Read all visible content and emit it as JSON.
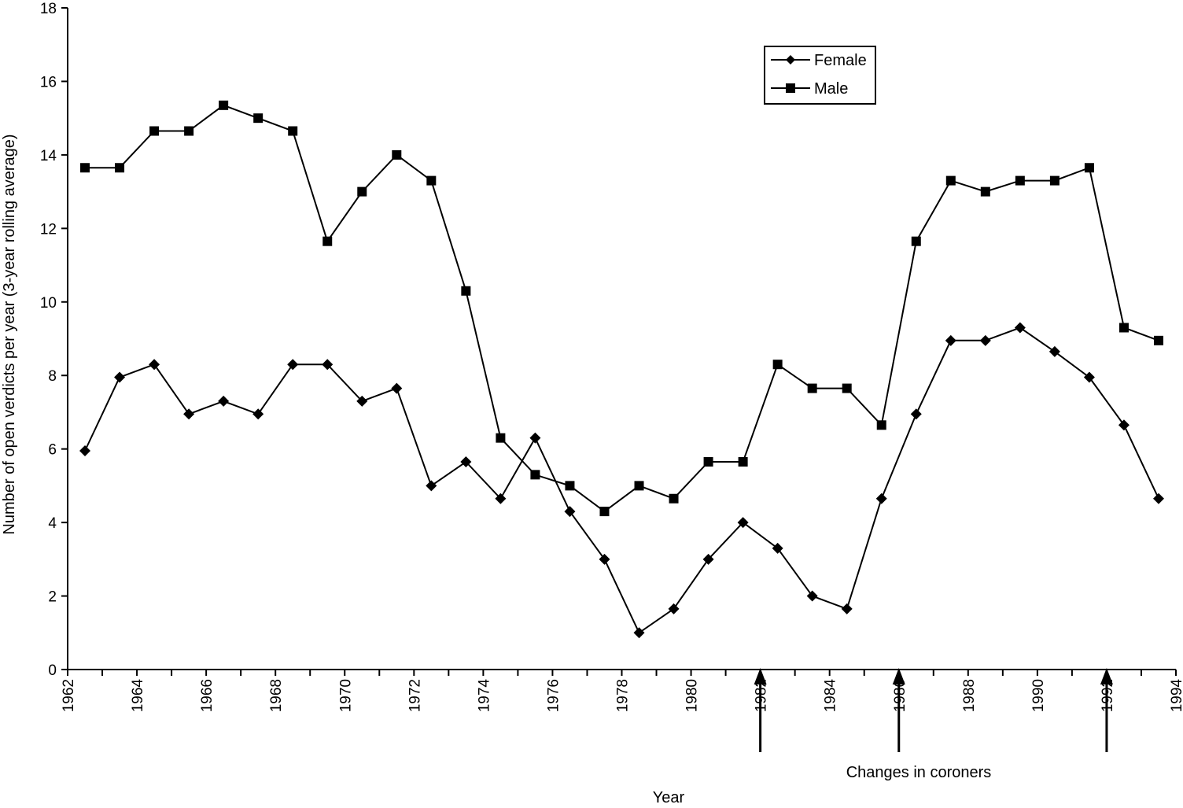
{
  "chart_data": {
    "type": "line",
    "title": "",
    "xlabel": "Year",
    "ylabel": "Number of open verdicts per year (3-year rolling average)",
    "xlim": [
      1962,
      1994
    ],
    "ylim": [
      0,
      18
    ],
    "x_ticks": [
      "1962",
      "1964",
      "1966",
      "1968",
      "1970",
      "1972",
      "1974",
      "1976",
      "1978",
      "1980",
      "1982",
      "1984",
      "1986",
      "1988",
      "1990",
      "1992",
      "1994"
    ],
    "y_ticks": [
      "0",
      "2",
      "4",
      "6",
      "8",
      "10",
      "12",
      "14",
      "16",
      "18"
    ],
    "grid": false,
    "legend_position": "top-right",
    "series": [
      {
        "name": "Female",
        "marker": "diamond",
        "x": [
          1962.5,
          1963.5,
          1964.5,
          1965.5,
          1966.5,
          1967.5,
          1968.5,
          1969.5,
          1970.5,
          1971.5,
          1972.5,
          1973.5,
          1974.5,
          1975.5,
          1976.5,
          1977.5,
          1978.5,
          1979.5,
          1980.5,
          1981.5,
          1982.5,
          1983.5,
          1984.5,
          1985.5,
          1986.5,
          1987.5,
          1988.5,
          1989.5,
          1990.5,
          1991.5,
          1992.5,
          1993.5
        ],
        "values": [
          5.95,
          7.95,
          8.3,
          6.95,
          7.3,
          6.95,
          8.3,
          8.3,
          7.3,
          7.65,
          5.0,
          5.65,
          4.65,
          6.3,
          4.3,
          3.0,
          1.0,
          1.65,
          3.0,
          4.0,
          3.3,
          2.0,
          1.65,
          4.65,
          6.95,
          8.95,
          8.95,
          9.3,
          8.65,
          7.95,
          6.65,
          4.65
        ]
      },
      {
        "name": "Male",
        "marker": "square",
        "x": [
          1962.5,
          1963.5,
          1964.5,
          1965.5,
          1966.5,
          1967.5,
          1968.5,
          1969.5,
          1970.5,
          1971.5,
          1972.5,
          1973.5,
          1974.5,
          1975.5,
          1976.5,
          1977.5,
          1978.5,
          1979.5,
          1980.5,
          1981.5,
          1982.5,
          1983.5,
          1984.5,
          1985.5,
          1986.5,
          1987.5,
          1988.5,
          1989.5,
          1990.5,
          1991.5,
          1992.5,
          1993.5
        ],
        "values": [
          13.65,
          13.65,
          14.65,
          14.65,
          15.35,
          15.0,
          14.65,
          11.65,
          13.0,
          14.0,
          13.3,
          10.3,
          6.3,
          5.3,
          5.0,
          4.3,
          5.0,
          4.65,
          5.65,
          5.65,
          8.3,
          7.65,
          7.65,
          6.65,
          11.65,
          13.3,
          13.0,
          13.3,
          13.3,
          13.65,
          9.3,
          8.95
        ]
      }
    ],
    "annotations": {
      "text": "Changes in coroners",
      "arrow_years": [
        1982,
        1986,
        1992
      ]
    }
  }
}
